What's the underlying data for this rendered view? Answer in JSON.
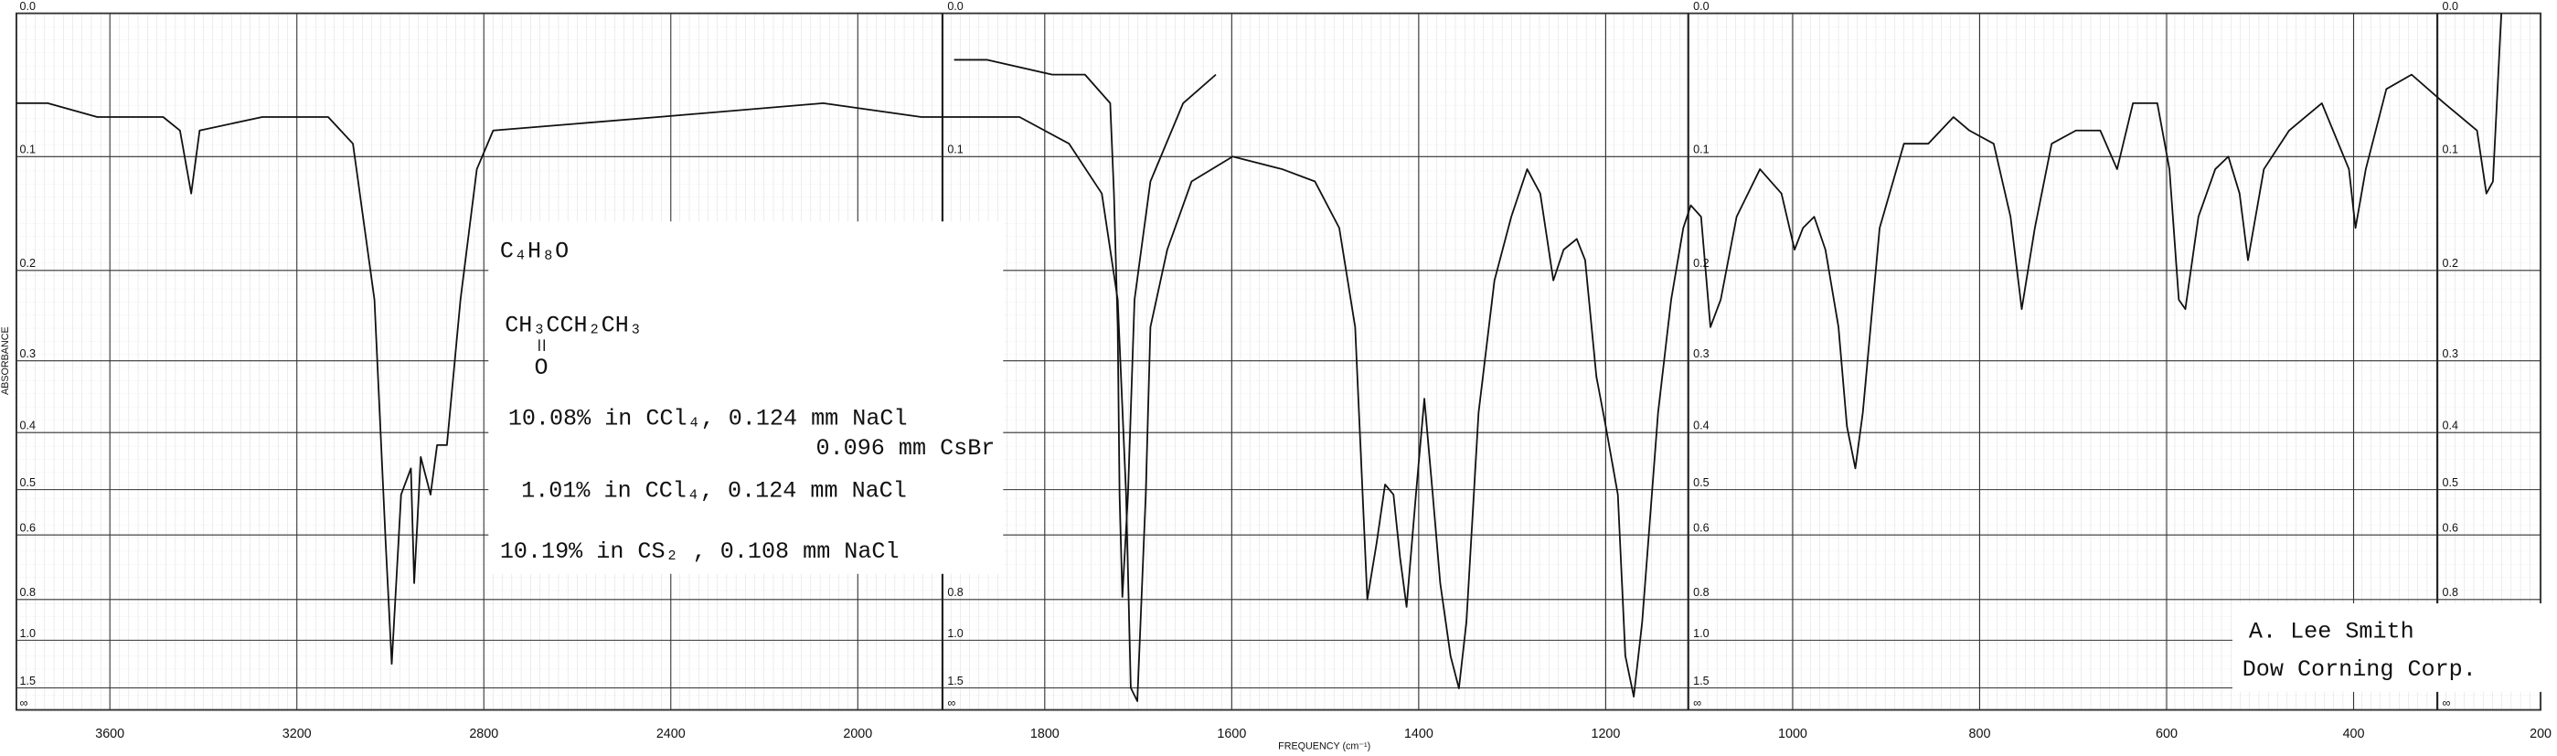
{
  "chart_data": {
    "type": "line",
    "xlabel": "FREQUENCY (cm⁻¹)",
    "ylabel": "ABSORBANCE",
    "xlim": [
      3800,
      200
    ],
    "xscale_break": 2000,
    "xticks": [
      3600,
      3200,
      2800,
      2400,
      2000,
      1800,
      1600,
      1400,
      1200,
      1000,
      800,
      600,
      400,
      200
    ],
    "yscale": "transmittance",
    "yticks": [
      {
        "value": 0,
        "label": "0.0"
      },
      0.1,
      0.2,
      0.3,
      0.4,
      0.5,
      0.6,
      0.8,
      {
        "value": 1,
        "label": "1.0"
      },
      1.5,
      {
        "value": null,
        "label": "∞"
      }
    ],
    "grid": true,
    "annotations": {
      "formula": "C₄H₈O",
      "structure": "CH₃CCH₂CH₃",
      "carbonyl": "O",
      "conditions": [
        "10.08% in CCl₄, 0.124 mm NaCl",
        "0.096 mm CsBr",
        "1.01% in CCl₄, 0.124 mm NaCl",
        "10.19% in CS₂ , 0.108 mm NaCl"
      ],
      "credit": [
        "A. Lee Smith",
        "Dow Corning Corp."
      ]
    },
    "series": [
      {
        "color": "#111111",
        "x": [
          3800,
          3733,
          3627,
          3486,
          3450,
          3426,
          3408,
          3274,
          3133,
          3080,
          3034,
          3010,
          2997,
          2977,
          2956,
          2949,
          2935,
          2914,
          2900,
          2879,
          2850,
          2815,
          2780,
          2427,
          2074,
          1932,
          1827,
          1774,
          1739,
          1722,
          1713,
          1708,
          1701,
          1692,
          1687,
          1669,
          1643,
          1599,
          1546,
          1511,
          1485,
          1468,
          1455,
          1445,
          1436,
          1427,
          1420,
          1413,
          1403,
          1394,
          1385,
          1377,
          1366,
          1357,
          1349,
          1336,
          1319,
          1301,
          1284,
          1270,
          1256,
          1245,
          1231,
          1222,
          1210,
          1200,
          1187,
          1179,
          1170,
          1161,
          1144,
          1130,
          1117,
          1109,
          1098,
          1088,
          1077,
          1060,
          1035,
          1012,
          998,
          989,
          977,
          965,
          951,
          942,
          933,
          925,
          907,
          881,
          855,
          828,
          811,
          785,
          767,
          755,
          741,
          723,
          697,
          671,
          653,
          636,
          610,
          597,
          587,
          580,
          566,
          548,
          534,
          522,
          513,
          496,
          469,
          434,
          405,
          398,
          387,
          365,
          338,
          303,
          268,
          258,
          251,
          242
        ],
        "values": [
          0.06,
          0.06,
          0.07,
          0.07,
          0.08,
          0.13,
          0.08,
          0.07,
          0.07,
          0.09,
          0.23,
          0.62,
          1.18,
          0.51,
          0.46,
          0.74,
          0.44,
          0.51,
          0.42,
          0.42,
          0.23,
          0.11,
          0.08,
          0.07,
          0.06,
          0.07,
          0.07,
          0.09,
          0.13,
          0.23,
          0.51,
          1.5,
          1.9,
          0.51,
          0.26,
          0.18,
          0.12,
          0.1,
          0.11,
          0.12,
          0.16,
          0.26,
          0.8,
          0.62,
          0.49,
          0.51,
          0.66,
          0.83,
          0.51,
          0.35,
          0.51,
          0.74,
          1.11,
          1.51,
          0.9,
          0.37,
          0.21,
          0.15,
          0.11,
          0.13,
          0.21,
          0.18,
          0.17,
          0.19,
          0.32,
          0.39,
          0.51,
          1.11,
          1.72,
          0.9,
          0.37,
          0.23,
          0.16,
          0.14,
          0.15,
          0.26,
          0.23,
          0.15,
          0.11,
          0.13,
          0.18,
          0.16,
          0.15,
          0.18,
          0.26,
          0.39,
          0.46,
          0.37,
          0.16,
          0.09,
          0.09,
          0.07,
          0.08,
          0.09,
          0.15,
          0.24,
          0.16,
          0.09,
          0.08,
          0.08,
          0.11,
          0.06,
          0.06,
          0.11,
          0.23,
          0.24,
          0.15,
          0.11,
          0.1,
          0.13,
          0.19,
          0.11,
          0.08,
          0.06,
          0.11,
          0.16,
          0.11,
          0.05,
          0.04,
          0.06,
          0.08,
          0.13,
          0.12,
          0
        ]
      },
      {
        "color": "#111111",
        "x": [
          1897,
          1862,
          1792,
          1757,
          1730,
          1726,
          1722,
          1720,
          1717,
          1711,
          1704,
          1687,
          1652,
          1617
        ],
        "values": [
          0.03,
          0.03,
          0.04,
          0.04,
          0.06,
          0.13,
          0.26,
          0.51,
          0.79,
          0.51,
          0.23,
          0.12,
          0.06,
          0.04
        ]
      }
    ]
  }
}
